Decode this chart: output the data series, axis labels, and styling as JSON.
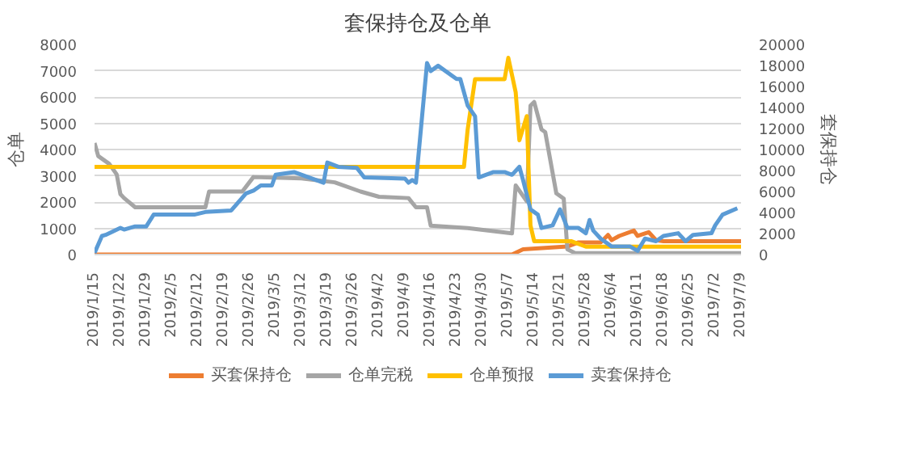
{
  "chart_data": {
    "type": "line",
    "title": "套保持仓及仓单",
    "ylabel": "仓单",
    "y2label": "套保持仓",
    "xlim": [
      "2019-01-15",
      "2019-07-09"
    ],
    "xticks": [
      {
        "value": "2019-01-15",
        "label": "2019/1/15"
      },
      {
        "value": "2019-01-22",
        "label": "2019/1/22"
      },
      {
        "value": "2019-01-29",
        "label": "2019/1/29"
      },
      {
        "value": "2019-02-05",
        "label": "2019/2/5"
      },
      {
        "value": "2019-02-12",
        "label": "2019/2/12"
      },
      {
        "value": "2019-02-19",
        "label": "2019/2/19"
      },
      {
        "value": "2019-02-26",
        "label": "2019/2/26"
      },
      {
        "value": "2019-03-05",
        "label": "2019/3/5"
      },
      {
        "value": "2019-03-12",
        "label": "2019/3/12"
      },
      {
        "value": "2019-03-19",
        "label": "2019/3/19"
      },
      {
        "value": "2019-03-26",
        "label": "2019/3/26"
      },
      {
        "value": "2019-04-02",
        "label": "2019/4/2"
      },
      {
        "value": "2019-04-09",
        "label": "2019/4/9"
      },
      {
        "value": "2019-04-16",
        "label": "2019/4/16"
      },
      {
        "value": "2019-04-23",
        "label": "2019/4/23"
      },
      {
        "value": "2019-04-30",
        "label": "2019/4/30"
      },
      {
        "value": "2019-05-07",
        "label": "2019/5/7"
      },
      {
        "value": "2019-05-14",
        "label": "2019/5/14"
      },
      {
        "value": "2019-05-21",
        "label": "2019/5/21"
      },
      {
        "value": "2019-05-28",
        "label": "2019/5/28"
      },
      {
        "value": "2019-06-04",
        "label": "2019/6/4"
      },
      {
        "value": "2019-06-11",
        "label": "2019/6/11"
      },
      {
        "value": "2019-06-18",
        "label": "2019/6/18"
      },
      {
        "value": "2019-06-25",
        "label": "2019/6/25"
      },
      {
        "value": "2019-07-02",
        "label": "2019/7/2"
      },
      {
        "value": "2019-07-09",
        "label": "2019/7/9"
      }
    ],
    "ylim": [
      0,
      8000
    ],
    "yticks": [
      0,
      1000,
      2000,
      3000,
      4000,
      5000,
      6000,
      7000,
      8000
    ],
    "y2lim": [
      0,
      20000
    ],
    "y2ticks": [
      0,
      2000,
      4000,
      6000,
      8000,
      10000,
      12000,
      14000,
      16000,
      18000,
      20000
    ],
    "grid": "y",
    "legend": "bottom",
    "line_style": "solid",
    "marker": "none",
    "series": [
      {
        "name": "买套保持仓",
        "color": "#ed7d31",
        "axis": "y2",
        "x": [
          "2019-01-15",
          "2019-05-08",
          "2019-05-11",
          "2019-05-23",
          "2019-05-26",
          "2019-06-01",
          "2019-06-03",
          "2019-06-04",
          "2019-06-06",
          "2019-06-10",
          "2019-06-11",
          "2019-06-14",
          "2019-06-16",
          "2019-06-18",
          "2019-07-09"
        ],
        "values": [
          0,
          0,
          500,
          760,
          1160,
          1160,
          1870,
          1370,
          1770,
          2280,
          1770,
          2130,
          1370,
          1270,
          1270
        ]
      },
      {
        "name": "仓单完税",
        "color": "#a5a5a5",
        "x": [
          "2019-01-15",
          "2019-01-16",
          "2019-01-19",
          "2019-01-21",
          "2019-01-22",
          "2019-01-23",
          "2019-01-26",
          "2019-02-14",
          "2019-02-15",
          "2019-02-24",
          "2019-02-27",
          "2019-03-12",
          "2019-03-18",
          "2019-03-21",
          "2019-03-28",
          "2019-04-02",
          "2019-04-10",
          "2019-04-12",
          "2019-04-15",
          "2019-04-16",
          "2019-04-26",
          "2019-05-08",
          "2019-05-09",
          "2019-05-12",
          "2019-05-13",
          "2019-05-14",
          "2019-05-16",
          "2019-05-17",
          "2019-05-20",
          "2019-05-22",
          "2019-05-23",
          "2019-05-25",
          "2019-07-09"
        ],
        "values": [
          4250,
          3750,
          3450,
          3050,
          2300,
          2150,
          1800,
          1800,
          2400,
          2400,
          2950,
          2900,
          2800,
          2750,
          2400,
          2200,
          2150,
          1800,
          1800,
          1100,
          1010,
          810,
          2630,
          2030,
          5670,
          5810,
          4760,
          4660,
          2330,
          2130,
          200,
          60,
          50
        ]
      },
      {
        "name": "仓单预报",
        "color": "#ffc000",
        "x": [
          "2019-01-15",
          "2019-04-25",
          "2019-04-26",
          "2019-04-28",
          "2019-05-06",
          "2019-05-07",
          "2019-05-09",
          "2019-05-10",
          "2019-05-12",
          "2019-05-13",
          "2019-05-14",
          "2019-05-24",
          "2019-05-28",
          "2019-07-09"
        ],
        "values": [
          3340,
          3340,
          4760,
          6680,
          6680,
          7490,
          6180,
          4350,
          5270,
          1110,
          510,
          510,
          300,
          300
        ]
      },
      {
        "name": "卖套保持仓",
        "color": "#5b9bd5",
        "axis": "y2",
        "x": [
          "2019-01-15",
          "2019-01-17",
          "2019-01-18",
          "2019-01-22",
          "2019-01-23",
          "2019-01-26",
          "2019-01-29",
          "2019-01-31",
          "2019-02-11",
          "2019-02-14",
          "2019-02-21",
          "2019-02-25",
          "2019-02-27",
          "2019-03-01",
          "2019-03-04",
          "2019-03-05",
          "2019-03-10",
          "2019-03-18",
          "2019-03-19",
          "2019-03-22",
          "2019-03-27",
          "2019-03-29",
          "2019-04-09",
          "2019-04-10",
          "2019-04-11",
          "2019-04-12",
          "2019-04-15",
          "2019-04-16",
          "2019-04-18",
          "2019-04-23",
          "2019-04-24",
          "2019-04-26",
          "2019-04-28",
          "2019-04-29",
          "2019-05-03",
          "2019-05-06",
          "2019-05-08",
          "2019-05-10",
          "2019-05-11",
          "2019-05-13",
          "2019-05-15",
          "2019-05-16",
          "2019-05-19",
          "2019-05-21",
          "2019-05-23",
          "2019-05-26",
          "2019-05-28",
          "2019-05-29",
          "2019-05-30",
          "2019-06-01",
          "2019-06-04",
          "2019-06-09",
          "2019-06-11",
          "2019-06-13",
          "2019-06-16",
          "2019-06-18",
          "2019-06-22",
          "2019-06-24",
          "2019-06-26",
          "2019-07-01",
          "2019-07-02",
          "2019-07-04",
          "2019-07-08"
        ],
        "values": [
          150,
          1770,
          1870,
          2530,
          2380,
          2680,
          2680,
          3800,
          3800,
          4050,
          4200,
          5820,
          6080,
          6580,
          6580,
          7590,
          7850,
          6840,
          8760,
          8350,
          8250,
          7340,
          7240,
          6840,
          7090,
          6840,
          18230,
          17470,
          17970,
          16710,
          16710,
          14180,
          13160,
          7340,
          7850,
          7850,
          7590,
          8350,
          7090,
          4300,
          3800,
          2530,
          2780,
          4300,
          2530,
          2530,
          2030,
          3290,
          2280,
          1520,
          760,
          760,
          350,
          1520,
          1270,
          1770,
          2030,
          1270,
          1870,
          2030,
          2780,
          3800,
          4400
        ]
      }
    ]
  }
}
